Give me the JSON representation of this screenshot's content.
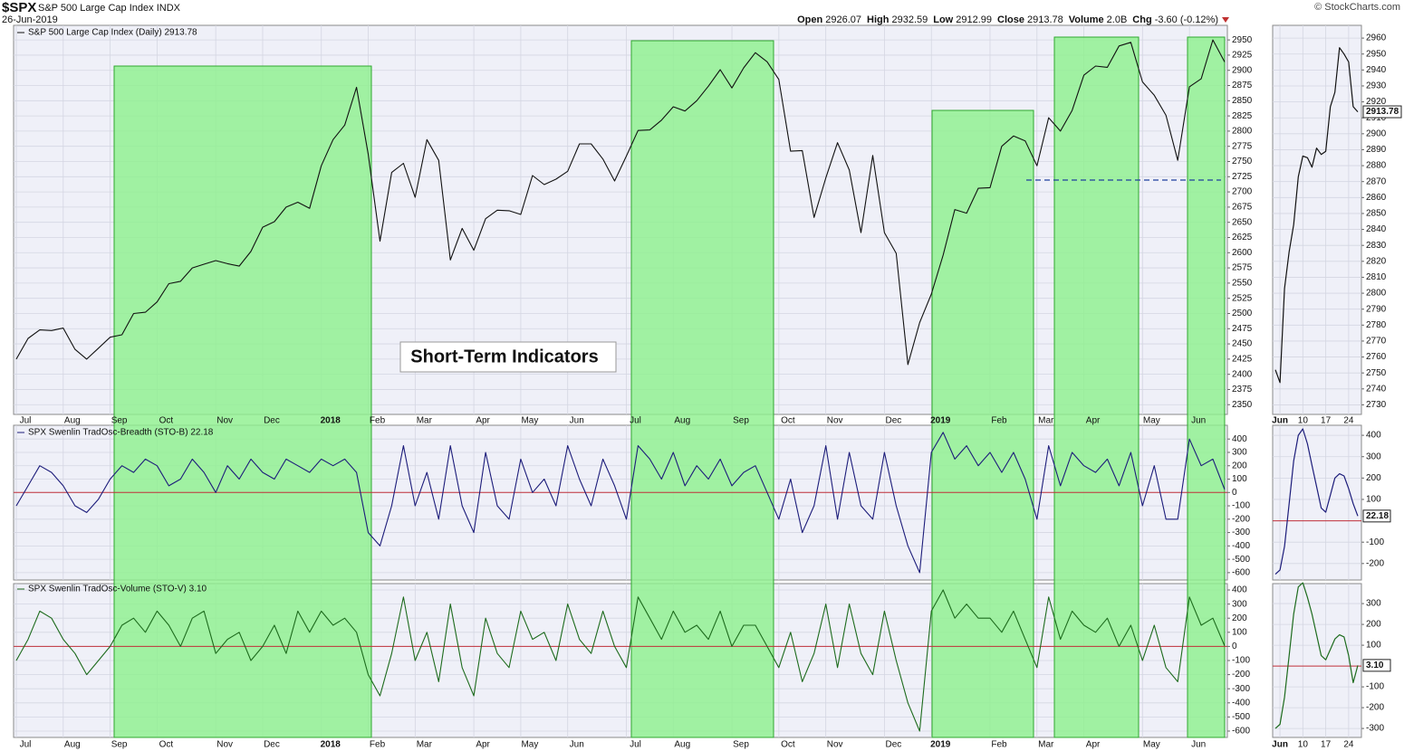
{
  "header": {
    "symbol": "$SPX",
    "name": "S&P 500 Large Cap Index",
    "exchange": "INDX",
    "date": "26-Jun-2019",
    "copyright": "© StockCharts.com",
    "quote": [
      {
        "label": "Open",
        "value": "2926.07"
      },
      {
        "label": "High",
        "value": "2932.59"
      },
      {
        "label": "Low",
        "value": "2912.99"
      },
      {
        "label": "Close",
        "value": "2913.78"
      },
      {
        "label": "Volume",
        "value": "2.0B"
      },
      {
        "label": "Chg",
        "value": "-3.60 (-0.12%)"
      }
    ]
  },
  "chart_data": [
    {
      "type": "line",
      "title": "S&P 500 Large Cap Index (Daily) 2913.78",
      "annotation": "Short-Term Indicators",
      "color": "#111111",
      "grid": true,
      "categories": [
        "Jul",
        null,
        null,
        null,
        "Aug",
        null,
        null,
        null,
        "Sep",
        null,
        null,
        null,
        "Oct",
        null,
        null,
        null,
        null,
        "Nov",
        null,
        null,
        null,
        "Dec",
        null,
        null,
        null,
        null,
        "2018",
        null,
        null,
        null,
        "Feb",
        null,
        null,
        null,
        "Mar",
        null,
        null,
        null,
        null,
        "Apr",
        null,
        null,
        null,
        "May",
        null,
        null,
        null,
        "Jun",
        null,
        null,
        null,
        null,
        "Jul",
        null,
        null,
        null,
        "Aug",
        null,
        null,
        null,
        null,
        "Sep",
        null,
        null,
        null,
        "Oct",
        null,
        null,
        null,
        "Nov",
        null,
        null,
        null,
        null,
        "Dec",
        null,
        null,
        null,
        "2019",
        null,
        null,
        null,
        null,
        "Feb",
        null,
        null,
        null,
        "Mar",
        null,
        null,
        null,
        "Apr",
        null,
        null,
        null,
        null,
        "May",
        null,
        null,
        null,
        "Jun",
        null,
        null,
        null
      ],
      "values": [
        2425,
        2459,
        2473,
        2472,
        2476,
        2441,
        2425,
        2443,
        2461,
        2465,
        2500,
        2502,
        2519,
        2549,
        2553,
        2575,
        2581,
        2587,
        2582,
        2578,
        2602,
        2642,
        2651,
        2675,
        2683,
        2673,
        2743,
        2786,
        2810,
        2872,
        2762,
        2619,
        2732,
        2747,
        2691,
        2786,
        2752,
        2588,
        2640,
        2604,
        2656,
        2670,
        2669,
        2663,
        2727,
        2712,
        2721,
        2734,
        2779,
        2779,
        2754,
        2718,
        2759,
        2801,
        2802,
        2818,
        2840,
        2833,
        2850,
        2874,
        2901,
        2871,
        2904,
        2929,
        2914,
        2885,
        2767,
        2768,
        2658,
        2723,
        2781,
        2736,
        2633,
        2760,
        2633,
        2599,
        2416,
        2485,
        2532,
        2596,
        2671,
        2665,
        2706,
        2707,
        2775,
        2792,
        2784,
        2743,
        2822,
        2800,
        2834,
        2892,
        2907,
        2905,
        2940,
        2946,
        2881,
        2859,
        2826,
        2752,
        2873,
        2886,
        2950,
        2913.78
      ],
      "ylim": [
        2334,
        2974
      ],
      "yticks": [
        2350,
        2375,
        2400,
        2425,
        2450,
        2475,
        2500,
        2525,
        2550,
        2575,
        2600,
        2625,
        2650,
        2675,
        2700,
        2725,
        2750,
        2775,
        2800,
        2825,
        2850,
        2875,
        2900,
        2925,
        2950
      ]
    },
    {
      "type": "line",
      "title": "SPX Swenlin TradOsc-Breadth (STO-B) 22.18",
      "color": "#1c1c7a",
      "hline": 0,
      "hline_color": "#c0303a",
      "grid": true,
      "values": [
        -100,
        50,
        200,
        150,
        50,
        -100,
        -150,
        -50,
        100,
        200,
        150,
        250,
        200,
        50,
        100,
        250,
        150,
        0,
        200,
        100,
        250,
        150,
        100,
        250,
        200,
        150,
        250,
        200,
        250,
        150,
        -300,
        -400,
        -100,
        350,
        -100,
        150,
        -200,
        350,
        -100,
        -300,
        300,
        -100,
        -200,
        250,
        0,
        100,
        -100,
        350,
        100,
        -100,
        250,
        50,
        -200,
        350,
        250,
        100,
        300,
        50,
        200,
        100,
        250,
        50,
        150,
        200,
        0,
        -200,
        100,
        -300,
        -100,
        350,
        -200,
        300,
        -100,
        -200,
        300,
        -100,
        -400,
        -600,
        300,
        450,
        250,
        350,
        200,
        300,
        150,
        300,
        100,
        -200,
        350,
        50,
        300,
        200,
        150,
        250,
        50,
        300,
        -100,
        200,
        -200,
        -200,
        400,
        200,
        250,
        22.18
      ],
      "ylim": [
        -655,
        503
      ],
      "yticks": [
        400,
        300,
        200,
        100,
        0,
        -100,
        -200,
        -300,
        -400,
        -500,
        -600
      ]
    },
    {
      "type": "line",
      "title": "SPX Swenlin TradOsc-Volume (STO-V) 3.10",
      "color": "#1d6b1d",
      "hline": 0,
      "hline_color": "#c0303a",
      "grid": true,
      "categories": [
        "Jul",
        null,
        null,
        null,
        "Aug",
        null,
        null,
        null,
        "Sep",
        null,
        null,
        null,
        "Oct",
        null,
        null,
        null,
        null,
        "Nov",
        null,
        null,
        null,
        "Dec",
        null,
        null,
        null,
        null,
        "2018",
        null,
        null,
        null,
        "Feb",
        null,
        null,
        null,
        "Mar",
        null,
        null,
        null,
        null,
        "Apr",
        null,
        null,
        null,
        "May",
        null,
        null,
        null,
        "Jun",
        null,
        null,
        null,
        null,
        "Jul",
        null,
        null,
        null,
        "Aug",
        null,
        null,
        null,
        null,
        "Sep",
        null,
        null,
        null,
        "Oct",
        null,
        null,
        null,
        "Nov",
        null,
        null,
        null,
        null,
        "Dec",
        null,
        null,
        null,
        "2019",
        null,
        null,
        null,
        null,
        "Feb",
        null,
        null,
        null,
        "Mar",
        null,
        null,
        null,
        "Apr",
        null,
        null,
        null,
        null,
        "May",
        null,
        null,
        null,
        "Jun",
        null,
        null,
        null
      ],
      "values": [
        -100,
        50,
        250,
        200,
        50,
        -50,
        -200,
        -100,
        0,
        150,
        200,
        100,
        250,
        150,
        0,
        200,
        250,
        -50,
        50,
        100,
        -100,
        0,
        150,
        -50,
        250,
        100,
        250,
        150,
        200,
        100,
        -200,
        -350,
        -50,
        350,
        -100,
        100,
        -250,
        300,
        -150,
        -350,
        200,
        -50,
        -150,
        250,
        50,
        100,
        -100,
        300,
        50,
        -50,
        250,
        0,
        -150,
        350,
        200,
        50,
        250,
        100,
        150,
        50,
        250,
        0,
        150,
        150,
        0,
        -150,
        100,
        -250,
        -50,
        300,
        -150,
        300,
        -50,
        -200,
        250,
        -100,
        -400,
        -600,
        250,
        400,
        200,
        300,
        200,
        200,
        100,
        250,
        50,
        -150,
        350,
        50,
        250,
        150,
        100,
        200,
        0,
        150,
        -100,
        150,
        -150,
        -250,
        350,
        150,
        200,
        3.1
      ],
      "ylim": [
        -645,
        445
      ],
      "yticks": [
        400,
        300,
        200,
        100,
        0,
        -100,
        -200,
        -300,
        -400,
        -500,
        -600
      ]
    },
    {
      "type": "line",
      "color": "#111111",
      "grid": true,
      "categories": [
        null,
        "Jun",
        null,
        null,
        null,
        null,
        "10",
        null,
        null,
        null,
        null,
        "17",
        null,
        null,
        null,
        null,
        "24",
        null,
        null
      ],
      "values": [
        2752,
        2744,
        2803,
        2826,
        2843,
        2873,
        2886,
        2885,
        2879,
        2891,
        2887,
        2889,
        2917,
        2926,
        2954,
        2950,
        2945,
        2917,
        2913.78
      ],
      "ylim": [
        2724,
        2968
      ],
      "yticks": [
        2730,
        2740,
        2750,
        2760,
        2770,
        2780,
        2790,
        2800,
        2810,
        2820,
        2830,
        2840,
        2850,
        2860,
        2870,
        2880,
        2890,
        2900,
        2910,
        2920,
        2930,
        2940,
        2950,
        2960
      ]
    },
    {
      "type": "line",
      "color": "#1c1c7a",
      "hline": 0,
      "hline_color": "#c0303a",
      "grid": true,
      "values": [
        -250,
        -230,
        -120,
        80,
        280,
        400,
        430,
        360,
        260,
        160,
        60,
        40,
        120,
        200,
        220,
        210,
        150,
        80,
        22.18
      ],
      "ylim": [
        -277,
        447
      ],
      "yticks": [
        400,
        300,
        200,
        100,
        -100,
        -200
      ]
    },
    {
      "type": "line",
      "color": "#1d6b1d",
      "hline": 0,
      "hline_color": "#c0303a",
      "grid": true,
      "categories": [
        null,
        "Jun",
        null,
        null,
        null,
        null,
        "10",
        null,
        null,
        null,
        null,
        "17",
        null,
        null,
        null,
        null,
        "24",
        null,
        null
      ],
      "values": [
        -300,
        -280,
        -150,
        50,
        250,
        380,
        400,
        330,
        250,
        150,
        50,
        30,
        80,
        130,
        150,
        140,
        50,
        -80,
        3.1
      ],
      "value_labels": [
        null,
        null,
        null,
        null,
        null,
        null,
        null,
        null,
        null,
        null,
        null,
        null,
        null,
        null,
        null,
        null,
        null,
        null,
        "3.10"
      ],
      "ylim": [
        -343,
        396
      ],
      "yticks": [
        300,
        200,
        100,
        -100,
        -200,
        -300
      ]
    }
  ]
}
